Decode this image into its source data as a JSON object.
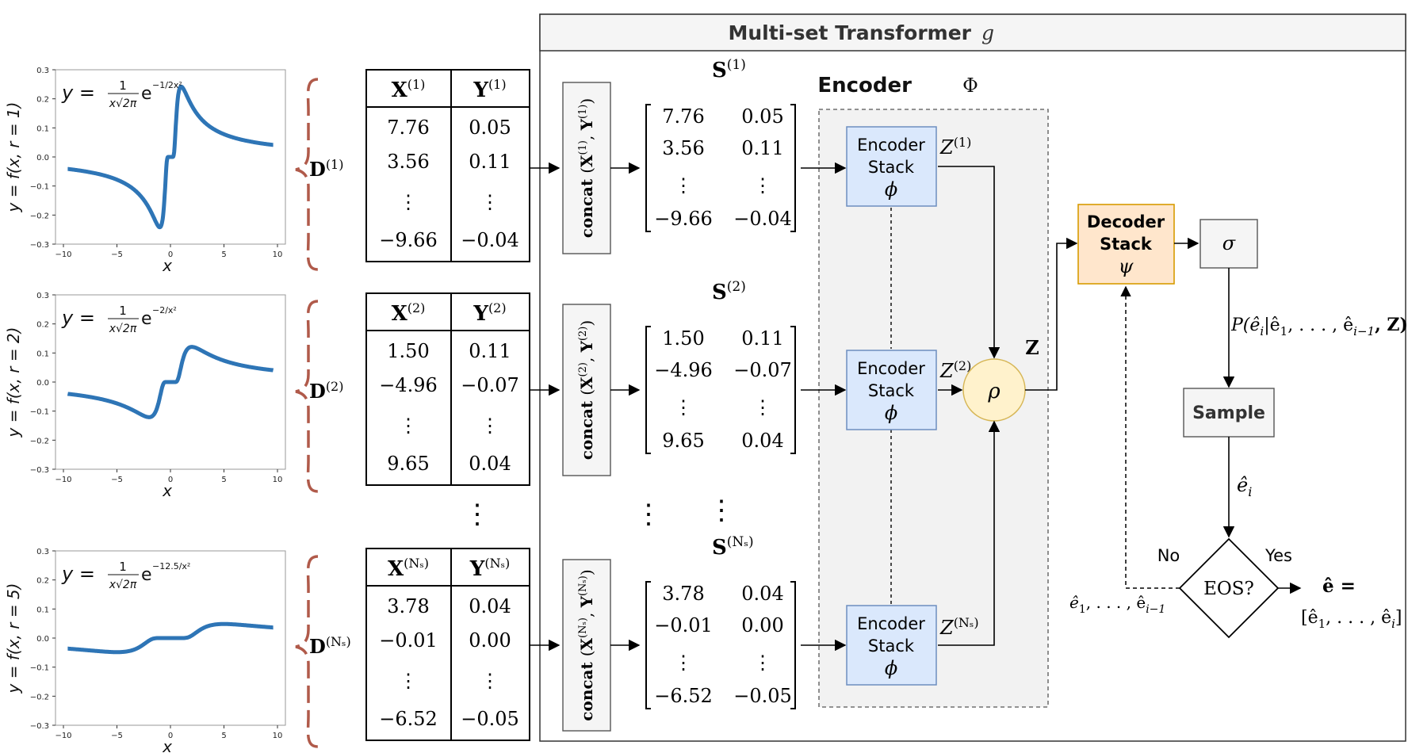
{
  "title": "Multi-set Transformer",
  "title_symbol": "g",
  "encoder_label": "Encoder",
  "encoder_symbol": "Φ",
  "encoder_stack": {
    "line1": "Encoder",
    "line2": "Stack",
    "symbol": "ϕ"
  },
  "decoder_stack": {
    "line1": "Decoder",
    "line2": "Stack",
    "symbol": "ψ"
  },
  "rho": "ρ",
  "z_label": "Z",
  "sigma": "σ",
  "prob_label": "P(ê",
  "prob_sub": "i",
  "prob_rest": "|ê",
  "prob_tail": ", . . . , ê",
  "prob_end": ", Z)",
  "sample_label": "Sample",
  "e_hat_i": "ê",
  "e_hat_i_sub": "i",
  "eos_label": "EOS?",
  "no_label": "No",
  "yes_label": "Yes",
  "feedback_text": "ê",
  "feedback_tail": ", . . . , ê",
  "feedback_sub": "i−1",
  "result_line1": "ê =",
  "result_line2": "[ê",
  "result_line2_tail": ", . . . , ê",
  "result_line2_end": "]",
  "concat_label": "concat",
  "vdots": "⋮",
  "panels": [
    {
      "ylabel": "y = f(x, r = 1)",
      "xlabel": "x",
      "formula_lhs": "y =",
      "formula_num": "1",
      "formula_den": "x√2π",
      "formula_e": "e",
      "formula_exp": "−1/2x²",
      "yticks": [
        "0.3",
        "0.2",
        "0.1",
        "0.0",
        "−0.1",
        "−0.2",
        "−0.3"
      ],
      "xticks": [
        "−10",
        "−5",
        "0",
        "5",
        "10"
      ],
      "ylim": [
        -0.3,
        0.3
      ],
      "r": 1
    },
    {
      "ylabel": "y = f(x, r = 2)",
      "xlabel": "x",
      "formula_lhs": "y =",
      "formula_num": "1",
      "formula_den": "x√2π",
      "formula_e": "e",
      "formula_exp": "−2/x²",
      "yticks": [
        "0.3",
        "0.2",
        "0.1",
        "0.0",
        "−0.1",
        "−0.2",
        "−0.3"
      ],
      "xticks": [
        "−10",
        "−5",
        "0",
        "5",
        "10"
      ],
      "ylim": [
        -0.3,
        0.3
      ],
      "r": 2
    },
    {
      "ylabel": "y = f(x, r = 5)",
      "xlabel": "x",
      "formula_lhs": "y =",
      "formula_num": "1",
      "formula_den": "x√2π",
      "formula_e": "e",
      "formula_exp": "−12.5/x²",
      "yticks": [
        "0.3",
        "0.2",
        "0.1",
        "0.0",
        "−0.1",
        "−0.2",
        "−0.3"
      ],
      "xticks": [
        "−10",
        "−5",
        "0",
        "5",
        "10"
      ],
      "ylim": [
        -0.3,
        0.3
      ],
      "r": 5
    }
  ],
  "datasets": [
    {
      "d_label": "D",
      "sup": "(1)",
      "x_head": "X",
      "y_head": "Y",
      "rows": [
        [
          "7.76",
          "0.05"
        ],
        [
          "3.56",
          "0.11"
        ],
        [
          "⋮",
          "⋮"
        ],
        [
          "−9.66",
          "−0.04"
        ]
      ],
      "s_label": "S",
      "z_label": "Z",
      "concat_sup": "(1)"
    },
    {
      "d_label": "D",
      "sup": "(2)",
      "x_head": "X",
      "y_head": "Y",
      "rows": [
        [
          "1.50",
          "0.11"
        ],
        [
          "−4.96",
          "−0.07"
        ],
        [
          "⋮",
          "⋮"
        ],
        [
          "9.65",
          "0.04"
        ]
      ],
      "s_label": "S",
      "z_label": "Z",
      "concat_sup": "(2)"
    },
    {
      "d_label": "D",
      "sup": "(N_S)",
      "x_head": "X",
      "y_head": "Y",
      "rows": [
        [
          "3.78",
          "0.04"
        ],
        [
          "−0.01",
          "0.00"
        ],
        [
          "⋮",
          "⋮"
        ],
        [
          "−6.52",
          "−0.05"
        ]
      ],
      "s_label": "S",
      "z_label": "Z",
      "concat_sup": "(N_S)"
    }
  ],
  "colors": {
    "curve": "#2e75b6",
    "brace": "#b05a4a",
    "encoder_fill": "#dae8fc",
    "encoder_stroke": "#6c8ebf",
    "decoder_fill": "#ffe6cc",
    "decoder_stroke": "#d79b00",
    "rho_fill": "#fff2cc",
    "rho_stroke": "#d6b656",
    "box_gray": "#f5f5f5",
    "title_bar": "#f5f5f5"
  }
}
